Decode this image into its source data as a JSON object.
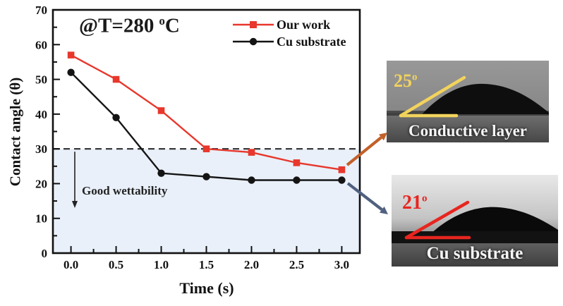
{
  "chart_data": {
    "type": "line",
    "title": {
      "prefix": "@T=280",
      "degree_sup": "o",
      "suffix": "C"
    },
    "xlabel": "Time (s)",
    "ylabel": "Contact angle (θ)",
    "x": [
      0.0,
      0.5,
      1.0,
      1.5,
      2.0,
      2.5,
      3.0
    ],
    "xtick_labels": [
      "0.0",
      "0.5",
      "1.0",
      "1.5",
      "2.0",
      "2.5",
      "3.0"
    ],
    "yticks": [
      0,
      10,
      20,
      30,
      40,
      50,
      60,
      70
    ],
    "xlim": [
      -0.2,
      3.2
    ],
    "ylim": [
      0,
      70
    ],
    "grid": false,
    "legend_position": "top-right-inside",
    "series": [
      {
        "name": "Our work",
        "color": "#e8372c",
        "marker": "square",
        "values": [
          57,
          50,
          41,
          30,
          29,
          26,
          24
        ]
      },
      {
        "name": "Cu substrate",
        "color": "#141414",
        "marker": "circle",
        "values": [
          52,
          39,
          23,
          22,
          21,
          21,
          21
        ]
      }
    ],
    "threshold": {
      "y": 30,
      "line_style": "dashed",
      "line_color": "#3a3a3a"
    },
    "shaded_region": {
      "below_y": 30,
      "fill": "#e9f0f9",
      "label": "Good wettability"
    }
  },
  "insets": [
    {
      "angle_value": "25",
      "degree_mark": "o",
      "caption": "Conductive layer",
      "annotation_color": "#f2d35c",
      "arrow_color": "#c2602a"
    },
    {
      "angle_value": "21",
      "degree_mark": "o",
      "caption": "Cu substrate",
      "annotation_color": "#e8251f",
      "arrow_color": "#50607f"
    }
  ]
}
